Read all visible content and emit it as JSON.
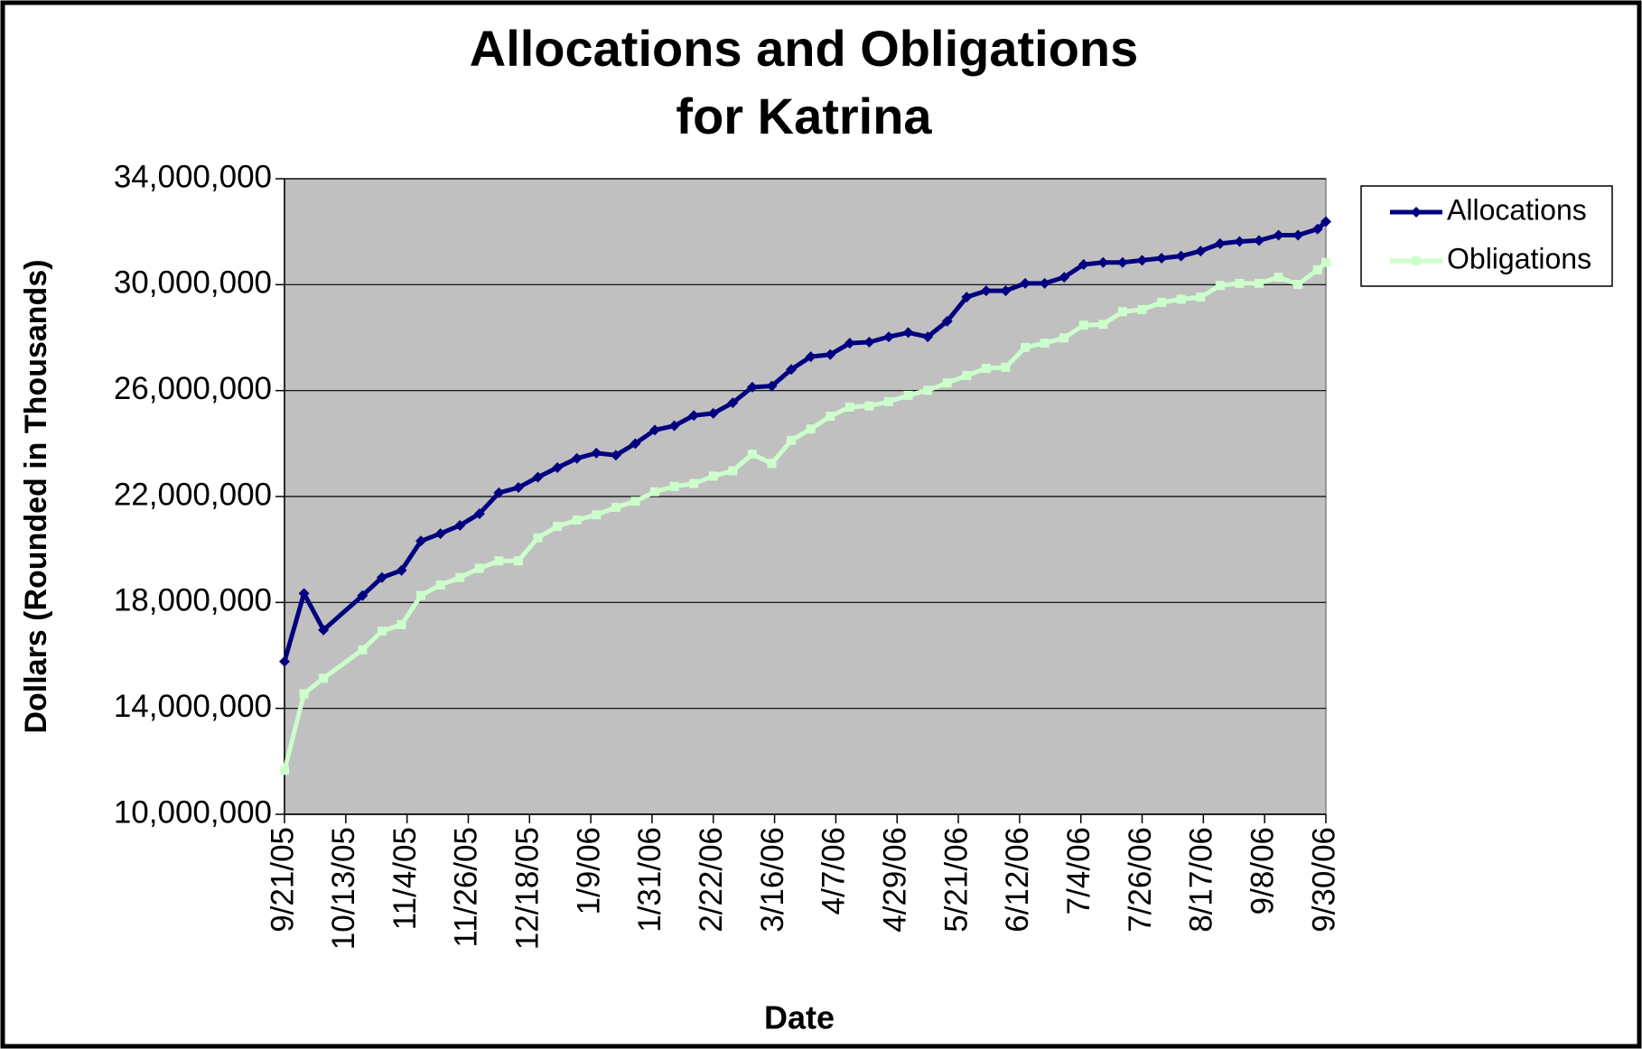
{
  "chart_data": {
    "type": "line",
    "title": [
      "Allocations and Obligations",
      "for Katrina"
    ],
    "x_label": "Date",
    "y_label": "Dollars (Rounded in Thousands)",
    "x": [
      "9/21/05",
      "9/28/05",
      "10/5/05",
      "10/19/05",
      "10/26/05",
      "11/2/05",
      "11/9/05",
      "11/16/05",
      "11/23/05",
      "11/30/05",
      "12/7/05",
      "12/14/05",
      "12/21/05",
      "12/28/05",
      "1/4/06",
      "1/11/06",
      "1/18/06",
      "1/25/06",
      "2/1/06",
      "2/8/06",
      "2/15/06",
      "2/22/06",
      "3/1/06",
      "3/8/06",
      "3/15/06",
      "3/22/06",
      "3/29/06",
      "4/5/06",
      "4/12/06",
      "4/19/06",
      "4/26/06",
      "5/3/06",
      "5/10/06",
      "5/17/06",
      "5/24/06",
      "5/31/06",
      "6/7/06",
      "6/14/06",
      "6/21/06",
      "6/28/06",
      "7/5/06",
      "7/12/06",
      "7/19/06",
      "7/26/06",
      "8/2/06",
      "8/9/06",
      "8/16/06",
      "8/23/06",
      "8/30/06",
      "9/6/06",
      "9/13/06",
      "9/20/06",
      "9/27/06",
      "9/30/06"
    ],
    "series": [
      {
        "name": "Allocations",
        "color": "#000080",
        "marker": "diamond",
        "values": [
          15770000,
          18340000,
          16960000,
          18260000,
          18940000,
          19210000,
          20320000,
          20600000,
          20910000,
          21350000,
          22140000,
          22340000,
          22730000,
          23090000,
          23440000,
          23640000,
          23560000,
          24000000,
          24510000,
          24670000,
          25060000,
          25140000,
          25540000,
          26130000,
          26170000,
          26800000,
          27280000,
          27360000,
          27790000,
          27830000,
          28030000,
          28190000,
          28030000,
          28620000,
          29530000,
          29770000,
          29770000,
          30050000,
          30050000,
          30280000,
          30760000,
          30840000,
          30840000,
          30920000,
          31000000,
          31080000,
          31270000,
          31550000,
          31630000,
          31670000,
          31870000,
          31870000,
          32100000,
          32380000
        ]
      },
      {
        "name": "Obligations",
        "color": "#ccffcc",
        "marker": "square",
        "values": [
          11660000,
          14550000,
          15140000,
          16210000,
          16920000,
          17160000,
          18260000,
          18660000,
          18940000,
          19290000,
          19570000,
          19570000,
          20440000,
          20870000,
          21110000,
          21310000,
          21590000,
          21820000,
          22180000,
          22380000,
          22490000,
          22770000,
          22970000,
          23600000,
          23250000,
          24120000,
          24550000,
          25030000,
          25380000,
          25420000,
          25580000,
          25820000,
          26010000,
          26290000,
          26570000,
          26840000,
          26880000,
          27630000,
          27790000,
          27990000,
          28470000,
          28500000,
          28980000,
          29060000,
          29330000,
          29450000,
          29530000,
          29970000,
          30050000,
          30050000,
          30280000,
          30010000,
          30560000,
          30840000
        ]
      }
    ],
    "xlim": [
      "9/21/05",
      "9/30/06"
    ],
    "xticks": [
      "9/21/05",
      "10/13/05",
      "11/4/05",
      "11/26/05",
      "12/18/05",
      "1/9/06",
      "1/31/06",
      "2/22/06",
      "3/16/06",
      "4/7/06",
      "4/29/06",
      "5/21/06",
      "6/12/06",
      "7/4/06",
      "7/26/06",
      "8/17/06",
      "9/8/06",
      "9/30/06"
    ],
    "ylim": [
      10000000,
      34000000
    ],
    "yticks": [
      {
        "value": 10000000,
        "label": "10,000,000"
      },
      {
        "value": 14000000,
        "label": "14,000,000"
      },
      {
        "value": 18000000,
        "label": "18,000,000"
      },
      {
        "value": 22000000,
        "label": "22,000,000"
      },
      {
        "value": 26000000,
        "label": "26,000,000"
      },
      {
        "value": 30000000,
        "label": "30,000,000"
      },
      {
        "value": 34000000,
        "label": "34,000,000"
      }
    ],
    "grid": true,
    "plot_background": "#c0c0c0",
    "legend": "right"
  }
}
